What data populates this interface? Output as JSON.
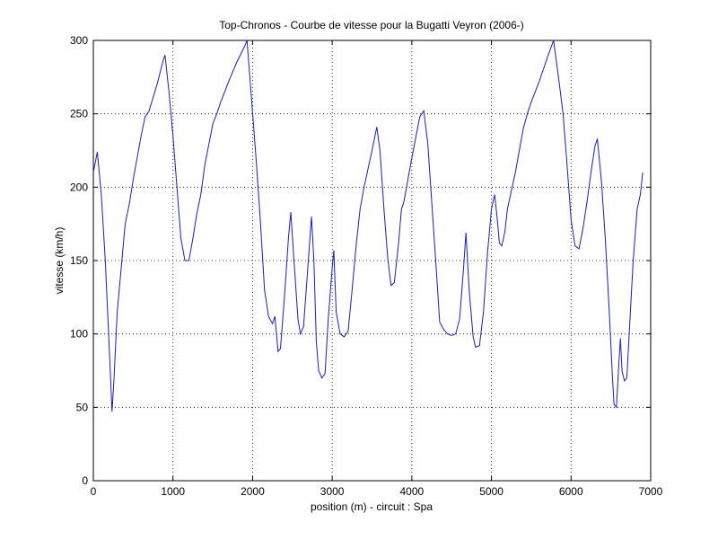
{
  "chart_data": {
    "type": "line",
    "title": "Top-Chronos - Courbe de vitesse pour la Bugatti Veyron (2006-)",
    "x_label": "position (m) - circuit : Spa",
    "y_label": "vitesse (km/h)",
    "color": "#1a1ac8",
    "grid": true,
    "xlim": [
      0,
      7000
    ],
    "xticks": [
      0,
      1000,
      2000,
      3000,
      4000,
      5000,
      6000,
      7000
    ],
    "ylim": [
      0,
      300
    ],
    "yticks": [
      0,
      50,
      100,
      150,
      200,
      250,
      300
    ],
    "x": [
      0,
      50,
      100,
      150,
      200,
      235,
      260,
      300,
      350,
      400,
      450,
      500,
      600,
      650,
      700,
      800,
      880,
      900,
      950,
      1000,
      1050,
      1100,
      1150,
      1200,
      1250,
      1300,
      1350,
      1400,
      1500,
      1550,
      1600,
      1700,
      1800,
      1900,
      1930,
      1980,
      2050,
      2100,
      2150,
      2200,
      2250,
      2280,
      2320,
      2350,
      2400,
      2450,
      2480,
      2520,
      2570,
      2600,
      2640,
      2700,
      2740,
      2770,
      2800,
      2830,
      2870,
      2910,
      2950,
      3000,
      3020,
      3050,
      3100,
      3150,
      3200,
      3250,
      3300,
      3350,
      3400,
      3500,
      3560,
      3600,
      3650,
      3700,
      3740,
      3780,
      3830,
      3870,
      3900,
      4000,
      4100,
      4150,
      4200,
      4250,
      4300,
      4350,
      4400,
      4450,
      4500,
      4550,
      4600,
      4650,
      4680,
      4720,
      4770,
      4800,
      4850,
      4900,
      4950,
      5000,
      5040,
      5070,
      5100,
      5130,
      5170,
      5200,
      5300,
      5400,
      5450,
      5500,
      5600,
      5700,
      5780,
      5830,
      5900,
      5950,
      6000,
      6050,
      6100,
      6150,
      6200,
      6250,
      6300,
      6330,
      6380,
      6430,
      6480,
      6520,
      6540,
      6570,
      6600,
      6620,
      6640,
      6670,
      6700,
      6730,
      6780,
      6830,
      6870,
      6900
    ],
    "values": [
      210,
      224,
      195,
      150,
      90,
      47,
      70,
      115,
      145,
      175,
      188,
      205,
      235,
      248,
      252,
      270,
      287,
      290,
      265,
      235,
      200,
      165,
      150,
      150,
      165,
      182,
      195,
      215,
      243,
      250,
      258,
      272,
      285,
      296,
      300,
      265,
      215,
      175,
      130,
      112,
      107,
      112,
      88,
      90,
      125,
      165,
      183,
      150,
      110,
      100,
      105,
      150,
      180,
      150,
      95,
      75,
      70,
      73,
      110,
      145,
      157,
      115,
      100,
      98,
      102,
      130,
      160,
      185,
      200,
      225,
      241,
      225,
      185,
      150,
      133,
      135,
      160,
      185,
      190,
      220,
      248,
      252,
      230,
      190,
      150,
      108,
      103,
      100,
      99,
      100,
      110,
      145,
      169,
      130,
      98,
      91,
      92,
      115,
      155,
      185,
      195,
      180,
      162,
      160,
      170,
      185,
      210,
      240,
      250,
      258,
      272,
      288,
      300,
      280,
      250,
      215,
      178,
      160,
      158,
      172,
      190,
      210,
      228,
      233,
      205,
      165,
      115,
      70,
      52,
      50,
      80,
      97,
      75,
      68,
      70,
      100,
      150,
      185,
      195,
      210
    ]
  }
}
